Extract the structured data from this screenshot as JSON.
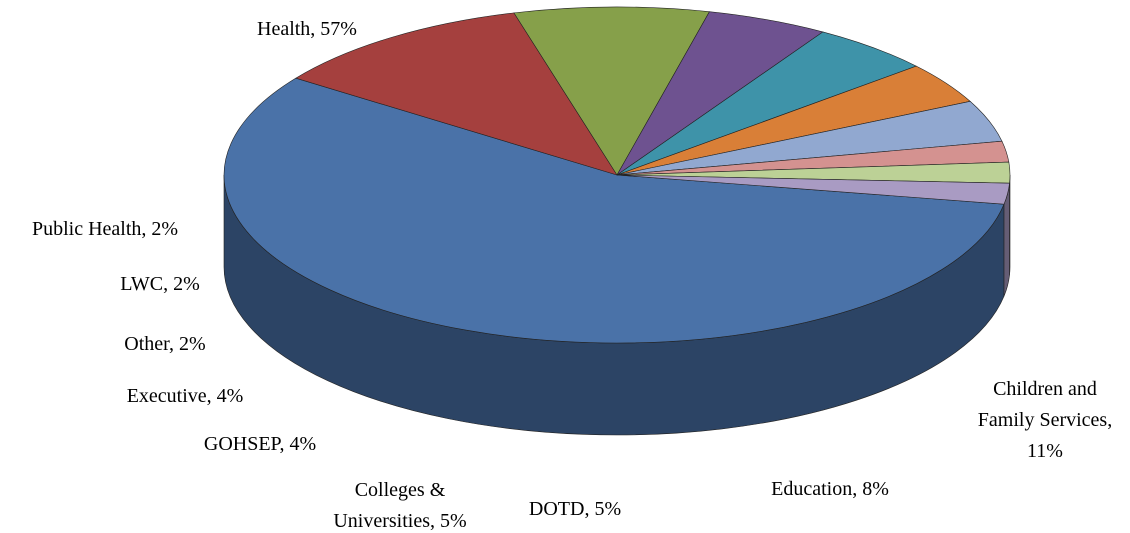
{
  "chart_data": {
    "type": "pie",
    "values": [
      57,
      11,
      8,
      5,
      5,
      4,
      4,
      2,
      2,
      2
    ],
    "value_labels": [
      "Health, 57%",
      "Children and\nFamily Services,\n11%",
      "Education, 8%",
      "DOTD, 5%",
      "Colleges &\nUniversities, 5%",
      "GOHSEP, 4%",
      "Executive, 4%",
      "Other, 2%",
      "LWC, 2%",
      "Public Health, 2%"
    ],
    "colors": [
      "#4a72a8",
      "#a5403e",
      "#86a04a",
      "#6e5290",
      "#3e93a9",
      "#d97f37",
      "#91a8d0",
      "#d49290",
      "#bcd196",
      "#a99bc3"
    ]
  }
}
